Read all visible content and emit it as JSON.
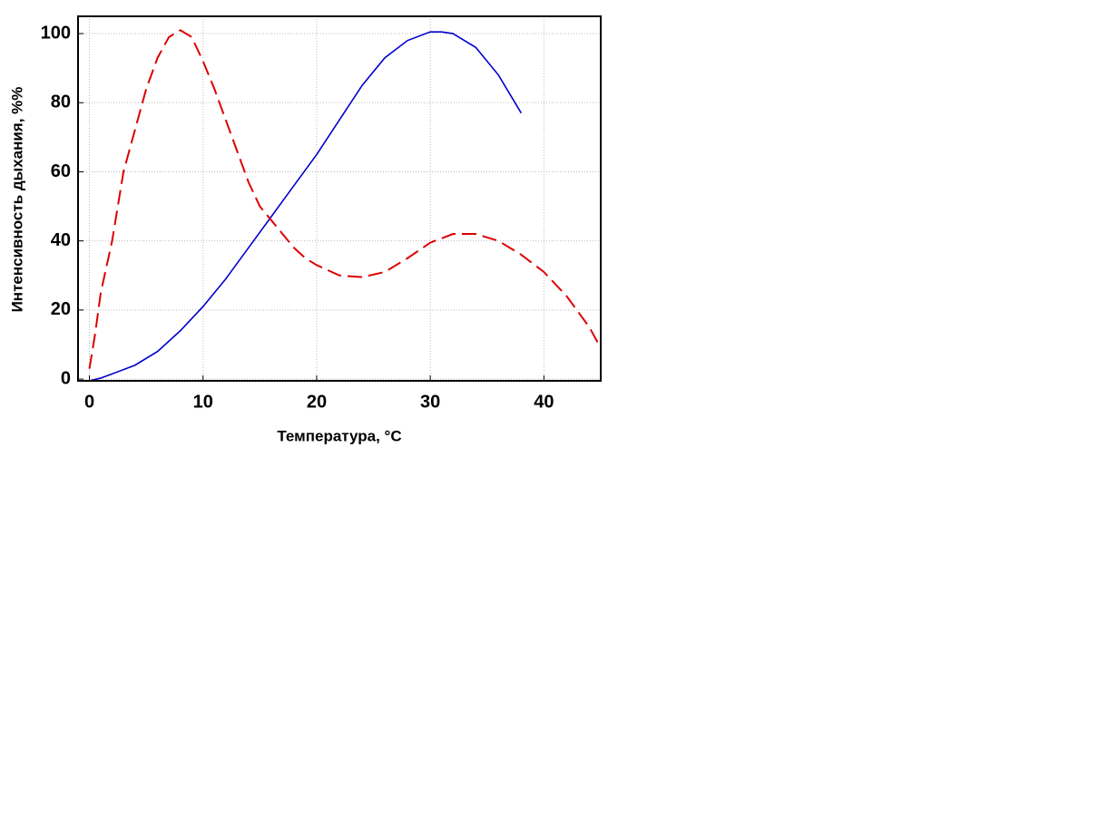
{
  "chart_data": {
    "type": "line",
    "x_label": "Температура,  °C",
    "y_label": "Интенсивность дыхания, %%",
    "xlim": [
      -1,
      45
    ],
    "ylim": [
      -0.5,
      105
    ],
    "xticks": [
      0,
      10,
      20,
      30,
      40
    ],
    "yticks": [
      0,
      20,
      40,
      60,
      80,
      100
    ],
    "grid": true,
    "series": [
      {
        "color": "#0000cc",
        "dash": false,
        "x": [
          0,
          1,
          2,
          4,
          6,
          8,
          10,
          12,
          14,
          16,
          18,
          20,
          22,
          24,
          26,
          28,
          30,
          31,
          32,
          34,
          36,
          38
        ],
        "values": [
          -0.5,
          0.3,
          1.5,
          4,
          8,
          14,
          21,
          29,
          38,
          47,
          56,
          65,
          75,
          85,
          93,
          98,
          100.5,
          100.5,
          100,
          96,
          88,
          77
        ]
      },
      {
        "color": "#dd0000",
        "dash": true,
        "x": [
          0,
          0.5,
          1,
          2,
          3,
          4,
          5,
          6,
          7,
          8,
          9,
          10,
          11,
          12,
          13,
          14,
          15,
          16,
          17,
          18,
          19,
          20,
          22,
          24,
          26,
          28,
          30,
          32,
          34,
          36,
          38,
          40,
          42,
          44,
          45
        ],
        "values": [
          3,
          13,
          25,
          40,
          60,
          72,
          84,
          93,
          99,
          101,
          99,
          92,
          84,
          75,
          66,
          57,
          50,
          46,
          42,
          38,
          35,
          33,
          30,
          29.5,
          31,
          35,
          39.5,
          42,
          42,
          40,
          36,
          31,
          24,
          15,
          9
        ]
      }
    ]
  }
}
